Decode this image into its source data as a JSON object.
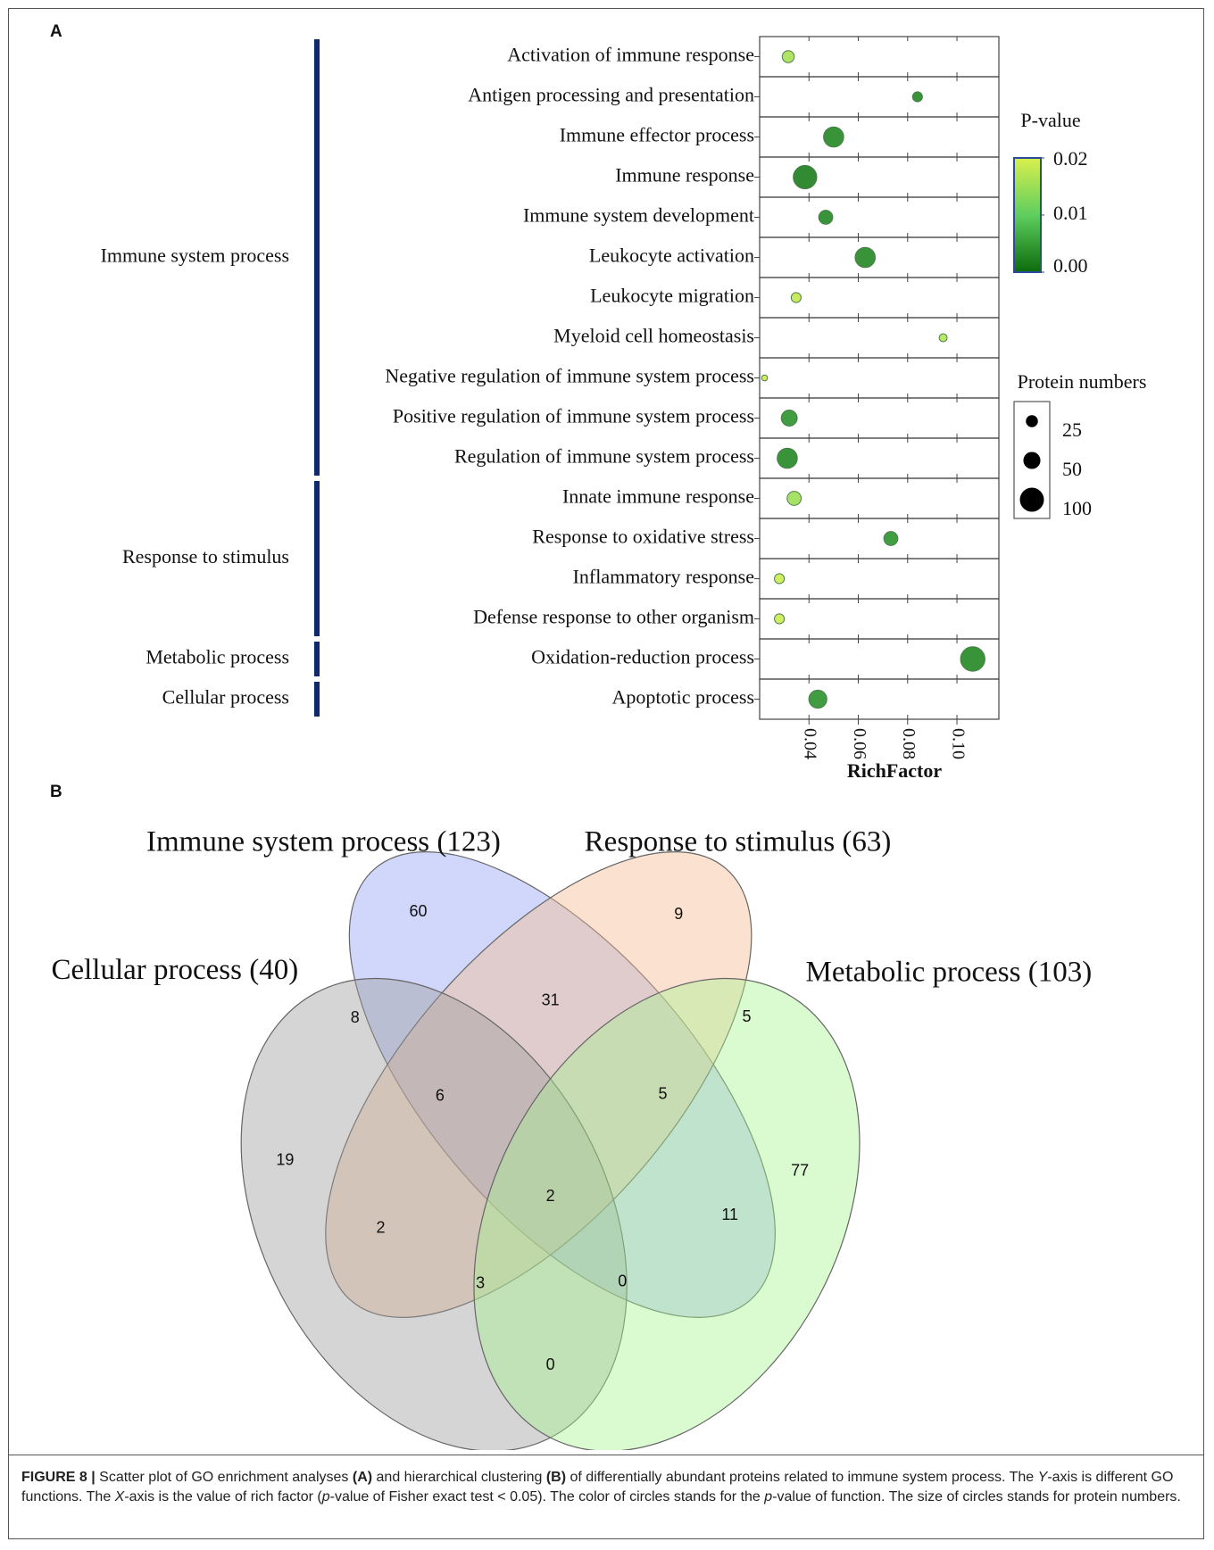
{
  "chart_data": [
    {
      "type": "scatter",
      "panel_label": "A",
      "x_label": "RichFactor",
      "xlim": [
        0.02,
        0.117
      ],
      "xticks": [
        0.04,
        0.06,
        0.08,
        {
          "value": 0.1,
          "label": "0.10"
        }
      ],
      "color_title": "P-value",
      "color_lim": [
        0,
        0.02
      ],
      "colormap": [
        "#0b6b0b",
        "#5fce5f",
        "#d8f04c"
      ],
      "color_ticks": [
        {
          "value": 0,
          "label": "0.00"
        },
        0.01,
        0.02
      ],
      "size_title": "Protein numbers",
      "size_legend": [
        25,
        50,
        100
      ],
      "groups": [
        {
          "name": "Immune system process",
          "terms": [
            {
              "name": "Activation of immune response",
              "rich_factor": 0.0316,
              "p_value": 0.016,
              "count": 25
            },
            {
              "name": "Antigen processing and presentation",
              "rich_factor": 0.084,
              "p_value": 0.003,
              "count": 17
            },
            {
              "name": "Immune effector process",
              "rich_factor": 0.05,
              "p_value": 0.003,
              "count": 70
            },
            {
              "name": "Immune response",
              "rich_factor": 0.0384,
              "p_value": 0.002,
              "count": 95
            },
            {
              "name": "Immune system development",
              "rich_factor": 0.0468,
              "p_value": 0.003,
              "count": 34
            },
            {
              "name": "Leukocyte activation",
              "rich_factor": 0.0628,
              "p_value": 0.003,
              "count": 70
            },
            {
              "name": "Leukocyte migration",
              "rich_factor": 0.0348,
              "p_value": 0.018,
              "count": 17
            },
            {
              "name": "Myeloid cell homeostasis",
              "rich_factor": 0.0944,
              "p_value": 0.017,
              "count": 11
            },
            {
              "name": "Negative regulation of immune system process",
              "rich_factor": 0.022,
              "p_value": 0.019,
              "count": 6
            },
            {
              "name": "Positive regulation of immune system process",
              "rich_factor": 0.032,
              "p_value": 0.004,
              "count": 44
            },
            {
              "name": "Regulation of immune system process",
              "rich_factor": 0.0312,
              "p_value": 0.003,
              "count": 70
            }
          ]
        },
        {
          "name": "Response to stimulus",
          "terms": [
            {
              "name": "Innate immune response",
              "rich_factor": 0.034,
              "p_value": 0.015,
              "count": 34
            },
            {
              "name": "Response to oxidative stress",
              "rich_factor": 0.0732,
              "p_value": 0.004,
              "count": 34
            },
            {
              "name": "Inflammatory response",
              "rich_factor": 0.028,
              "p_value": 0.019,
              "count": 17
            },
            {
              "name": "Defense response to other organism",
              "rich_factor": 0.028,
              "p_value": 0.019,
              "count": 17
            }
          ]
        },
        {
          "name": "Metabolic process",
          "terms": [
            {
              "name": "Oxidation-reduction process",
              "rich_factor": 0.1064,
              "p_value": 0.003,
              "count": 103
            }
          ]
        },
        {
          "name": "Cellular process",
          "terms": [
            {
              "name": "Apoptotic process",
              "rich_factor": 0.0436,
              "p_value": 0.004,
              "count": 56
            }
          ]
        }
      ]
    },
    {
      "type": "venn",
      "panel_label": "B",
      "sets": [
        {
          "name": "Immune system process (123)",
          "color": "#8fa0f2"
        },
        {
          "name": "Response to stimulus (63)",
          "color": "#f6b98f"
        },
        {
          "name": "Cellular process (40)",
          "color": "#9a9a9a"
        },
        {
          "name": "Metabolic process (103)",
          "color": "#a8f290"
        }
      ],
      "regions": [
        60,
        9,
        8,
        31,
        5,
        6,
        5,
        19,
        77,
        2,
        2,
        11,
        3,
        0,
        0
      ]
    }
  ],
  "caption": {
    "segments": [
      "FIGURE 8 |",
      " Scatter plot of GO enrichment analyses ",
      "(A)",
      " and hierarchical clustering ",
      "(B)",
      " of differentially abundant proteins related to immune system process. The ",
      "Y",
      "-axis is different GO functions. The ",
      "X",
      "-axis is the value of rich factor (",
      "p",
      "-value of Fisher exact test < 0.05). The color of circles stands for the ",
      "p",
      "-value of function. The size of circles stands for protein numbers."
    ]
  }
}
